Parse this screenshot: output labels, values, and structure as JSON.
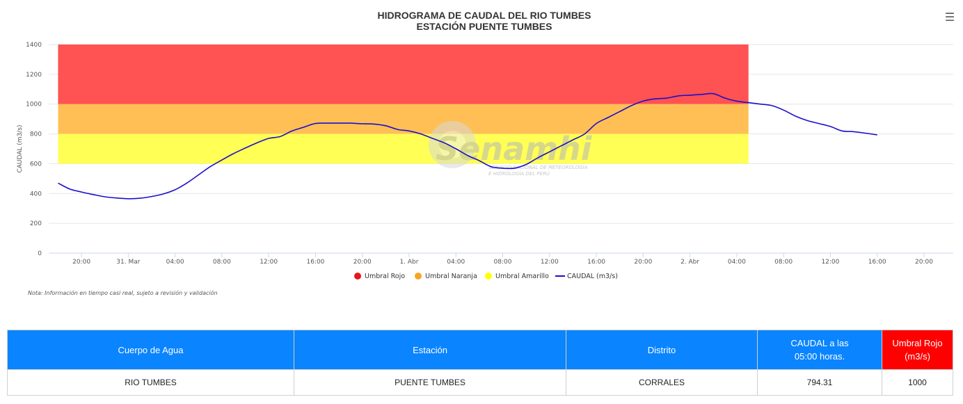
{
  "chart_data": {
    "type": "line",
    "title": "HIDROGRAMA DE CAUDAL DEL RIO TUMBES",
    "subtitle": "ESTACIÓN PUENTE TUMBES",
    "ylabel": "CAUDAL (m3/s)",
    "ylim": [
      0,
      1400
    ],
    "yticks": [
      "0",
      "200",
      "400",
      "600",
      "800",
      "1000",
      "1200",
      "1400"
    ],
    "xrange_hours": [
      -6.8,
      70.5
    ],
    "xticks": [
      {
        "label": "20:00",
        "h": -4
      },
      {
        "label": "31. Mar",
        "h": 0
      },
      {
        "label": "04:00",
        "h": 4
      },
      {
        "label": "08:00",
        "h": 8
      },
      {
        "label": "12:00",
        "h": 12
      },
      {
        "label": "16:00",
        "h": 16
      },
      {
        "label": "20:00",
        "h": 20
      },
      {
        "label": "1. Abr",
        "h": 24
      },
      {
        "label": "04:00",
        "h": 28
      },
      {
        "label": "08:00",
        "h": 32
      },
      {
        "label": "12:00",
        "h": 36
      },
      {
        "label": "16:00",
        "h": 40
      },
      {
        "label": "20:00",
        "h": 44
      },
      {
        "label": "2. Abr",
        "h": 48
      },
      {
        "label": "04:00",
        "h": 52
      },
      {
        "label": "08:00",
        "h": 56
      },
      {
        "label": "12:00",
        "h": 60
      },
      {
        "label": "16:00",
        "h": 64
      },
      {
        "label": "20:00",
        "h": 68
      }
    ],
    "bands": [
      {
        "name": "Umbral Rojo",
        "from": 1000,
        "to": 1400,
        "color": "#ff5252",
        "legend_color": "#e8141b"
      },
      {
        "name": "Umbral Naranja",
        "from": 800,
        "to": 1000,
        "color": "#ffbf55",
        "legend_color": "#f6a623"
      },
      {
        "name": "Umbral Amarillo",
        "from": 600,
        "to": 800,
        "color": "#ffff55",
        "legend_color": "#ffff00"
      }
    ],
    "band_x_hours": [
      -6,
      53
    ],
    "series": [
      {
        "name": "CAUDAL (m3/s)",
        "color": "#1a0ecc",
        "points": [
          [
            -6,
            470
          ],
          [
            -5,
            430
          ],
          [
            -4,
            410
          ],
          [
            -3,
            393
          ],
          [
            -2,
            378
          ],
          [
            -1,
            370
          ],
          [
            0,
            365
          ],
          [
            1,
            368
          ],
          [
            2,
            380
          ],
          [
            3,
            397
          ],
          [
            4,
            425
          ],
          [
            5,
            470
          ],
          [
            6,
            525
          ],
          [
            7,
            580
          ],
          [
            8,
            625
          ],
          [
            9,
            668
          ],
          [
            10,
            705
          ],
          [
            11,
            740
          ],
          [
            12,
            770
          ],
          [
            13,
            783
          ],
          [
            14,
            820
          ],
          [
            15,
            845
          ],
          [
            16,
            870
          ],
          [
            17,
            872
          ],
          [
            18,
            872
          ],
          [
            19,
            872
          ],
          [
            20,
            868
          ],
          [
            21,
            866
          ],
          [
            22,
            855
          ],
          [
            23,
            830
          ],
          [
            24,
            820
          ],
          [
            25,
            800
          ],
          [
            26,
            770
          ],
          [
            27,
            740
          ],
          [
            28,
            700
          ],
          [
            29,
            655
          ],
          [
            30,
            620
          ],
          [
            31,
            580
          ],
          [
            32,
            570
          ],
          [
            33,
            570
          ],
          [
            34,
            595
          ],
          [
            35,
            640
          ],
          [
            36,
            680
          ],
          [
            37,
            720
          ],
          [
            38,
            760
          ],
          [
            39,
            800
          ],
          [
            40,
            870
          ],
          [
            41,
            910
          ],
          [
            42,
            950
          ],
          [
            43,
            990
          ],
          [
            44,
            1020
          ],
          [
            45,
            1035
          ],
          [
            46,
            1040
          ],
          [
            47,
            1055
          ],
          [
            48,
            1060
          ],
          [
            49,
            1065
          ],
          [
            50,
            1070
          ],
          [
            51,
            1040
          ],
          [
            52,
            1020
          ],
          [
            53,
            1010
          ],
          [
            54,
            1000
          ],
          [
            55,
            990
          ],
          [
            56,
            960
          ],
          [
            57,
            920
          ],
          [
            58,
            890
          ],
          [
            59,
            870
          ],
          [
            60,
            850
          ],
          [
            61,
            820
          ],
          [
            62,
            815
          ],
          [
            63,
            805
          ],
          [
            64,
            794
          ]
        ]
      }
    ],
    "legend": [
      "Umbral Rojo",
      "Umbral Naranja",
      "Umbral Amarillo",
      "CAUDAL (m3/s)"
    ],
    "legend_position": "bottom-center",
    "grid": true
  },
  "watermark": {
    "brand": "Senamhi",
    "line1": "SERVICIO NACIONAL DE METEOROLOGÍA",
    "line2": "E HIDROLOGÍA DEL PERÚ"
  },
  "menu_icon": "hamburger-icon",
  "note": "Nota: Información en tiempo casi real, sujeto a revisión y validación",
  "table": {
    "headers": {
      "cuerpo": "Cuerpo de Agua",
      "estacion": "Estación",
      "distrito": "Distrito",
      "caudal_line1": "CAUDAL a las",
      "caudal_line2": "05:00 horas.",
      "umbral": "Umbral Rojo (m3/s)"
    },
    "row": {
      "cuerpo": "RIO TUMBES",
      "estacion": "PUENTE TUMBES",
      "distrito": "CORRALES",
      "caudal": "794.31",
      "umbral": "1000"
    },
    "colors": {
      "header": "#0a84ff",
      "header_red": "#ff0000"
    }
  }
}
